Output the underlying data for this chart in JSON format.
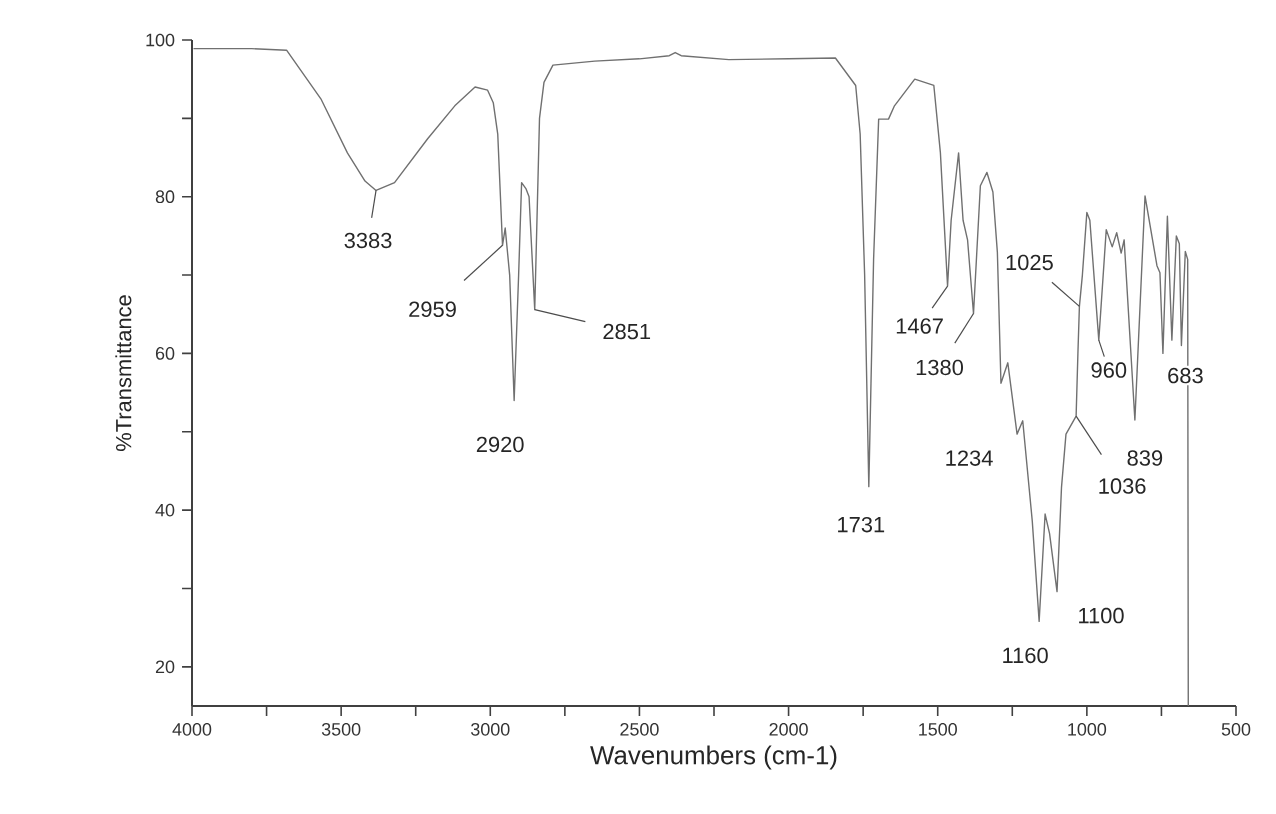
{
  "chart_data": {
    "type": "line",
    "xlabel": "Wavenumbers (cm-1)",
    "ylabel": "%Transmittance",
    "color": "#707070",
    "x": [
      3995,
      3800,
      3683,
      3568,
      3479,
      3420,
      3383,
      3321,
      3210,
      3119,
      3051,
      3009,
      2990,
      2975,
      2959,
      2950,
      2935,
      2920,
      2905,
      2895,
      2880,
      2870,
      2851,
      2835,
      2820,
      2790,
      2650,
      2500,
      2400,
      2380,
      2360,
      2200,
      2000,
      1843,
      1775,
      1760,
      1745,
      1731,
      1715,
      1698,
      1665,
      1645,
      1577,
      1513,
      1491,
      1467,
      1455,
      1430,
      1415,
      1400,
      1380,
      1357,
      1335,
      1315,
      1300,
      1288,
      1265,
      1234,
      1215,
      1183,
      1160,
      1140,
      1125,
      1100,
      1085,
      1070,
      1036,
      1030,
      1025,
      1015,
      1000,
      990,
      960,
      935,
      915,
      900,
      885,
      875,
      839,
      805,
      765,
      755,
      745,
      730,
      715,
      700,
      690,
      683,
      670,
      662,
      660
    ],
    "values": [
      98.9,
      98.9,
      98.7,
      92.5,
      85.6,
      82,
      80.8,
      81.8,
      87.4,
      91.6,
      94.0,
      93.6,
      92,
      88,
      73.8,
      76,
      70,
      54,
      70,
      81.8,
      81,
      80,
      65.6,
      90,
      94.6,
      96.8,
      97.3,
      97.6,
      98.0,
      98.4,
      98.0,
      97.5,
      97.6,
      97.7,
      94.2,
      88,
      70,
      43.0,
      72,
      89.9,
      89.9,
      91.6,
      95.0,
      94.2,
      85.6,
      68.6,
      77,
      85.6,
      77,
      74.5,
      65.1,
      81.4,
      83.1,
      80.6,
      72.9,
      56.2,
      58.8,
      49.7,
      51.4,
      38.6,
      25.8,
      39.5,
      37,
      29.6,
      42.9,
      49.7,
      52,
      60,
      66,
      70,
      78,
      77,
      61.7,
      75.8,
      73.6,
      75.4,
      72.8,
      74.5,
      51.5,
      80.1,
      71.2,
      70.3,
      60,
      77.5,
      61.7,
      75,
      74,
      61,
      73,
      72,
      15
    ],
    "xlim": [
      4000,
      500
    ],
    "ylim": [
      15,
      100
    ],
    "xticks": [
      4000,
      {
        "value": 3750,
        "label": null
      },
      3500,
      {
        "value": 3250,
        "label": null
      },
      3000,
      {
        "value": 2750,
        "label": null
      },
      2500,
      {
        "value": 2250,
        "label": null
      },
      2000,
      {
        "value": 1750,
        "label": null
      },
      1500,
      {
        "value": 1250,
        "label": null
      },
      1000,
      {
        "value": 750,
        "label": null
      },
      500
    ],
    "yticks": [
      20,
      {
        "value": 30,
        "label": null
      },
      40,
      {
        "value": 50,
        "label": null
      },
      60,
      {
        "value": 70,
        "label": null
      },
      80,
      {
        "value": 90,
        "label": null
      },
      100
    ],
    "annotations": [
      {
        "text": "3383",
        "x": 3383,
        "y": 80.8
      },
      {
        "text": "2959",
        "x": 2959,
        "y": 73.8
      },
      {
        "text": "2920",
        "x": 2920,
        "y": 54
      },
      {
        "text": "2851",
        "x": 2851,
        "y": 65.6
      },
      {
        "text": "1731",
        "x": 1731,
        "y": 43.0
      },
      {
        "text": "1467",
        "x": 1467,
        "y": 68.6
      },
      {
        "text": "1380",
        "x": 1380,
        "y": 65.1
      },
      {
        "text": "1234",
        "x": 1234,
        "y": 49.7
      },
      {
        "text": "1160",
        "x": 1160,
        "y": 25.8
      },
      {
        "text": "1100",
        "x": 1100,
        "y": 29.6
      },
      {
        "text": "1036",
        "x": 1036,
        "y": 52
      },
      {
        "text": "1025",
        "x": 1025,
        "y": 66
      },
      {
        "text": "960",
        "x": 960,
        "y": 61.7
      },
      {
        "text": "839",
        "x": 839,
        "y": 51.5
      },
      {
        "text": "683",
        "x": 683,
        "y": 61
      }
    ]
  }
}
